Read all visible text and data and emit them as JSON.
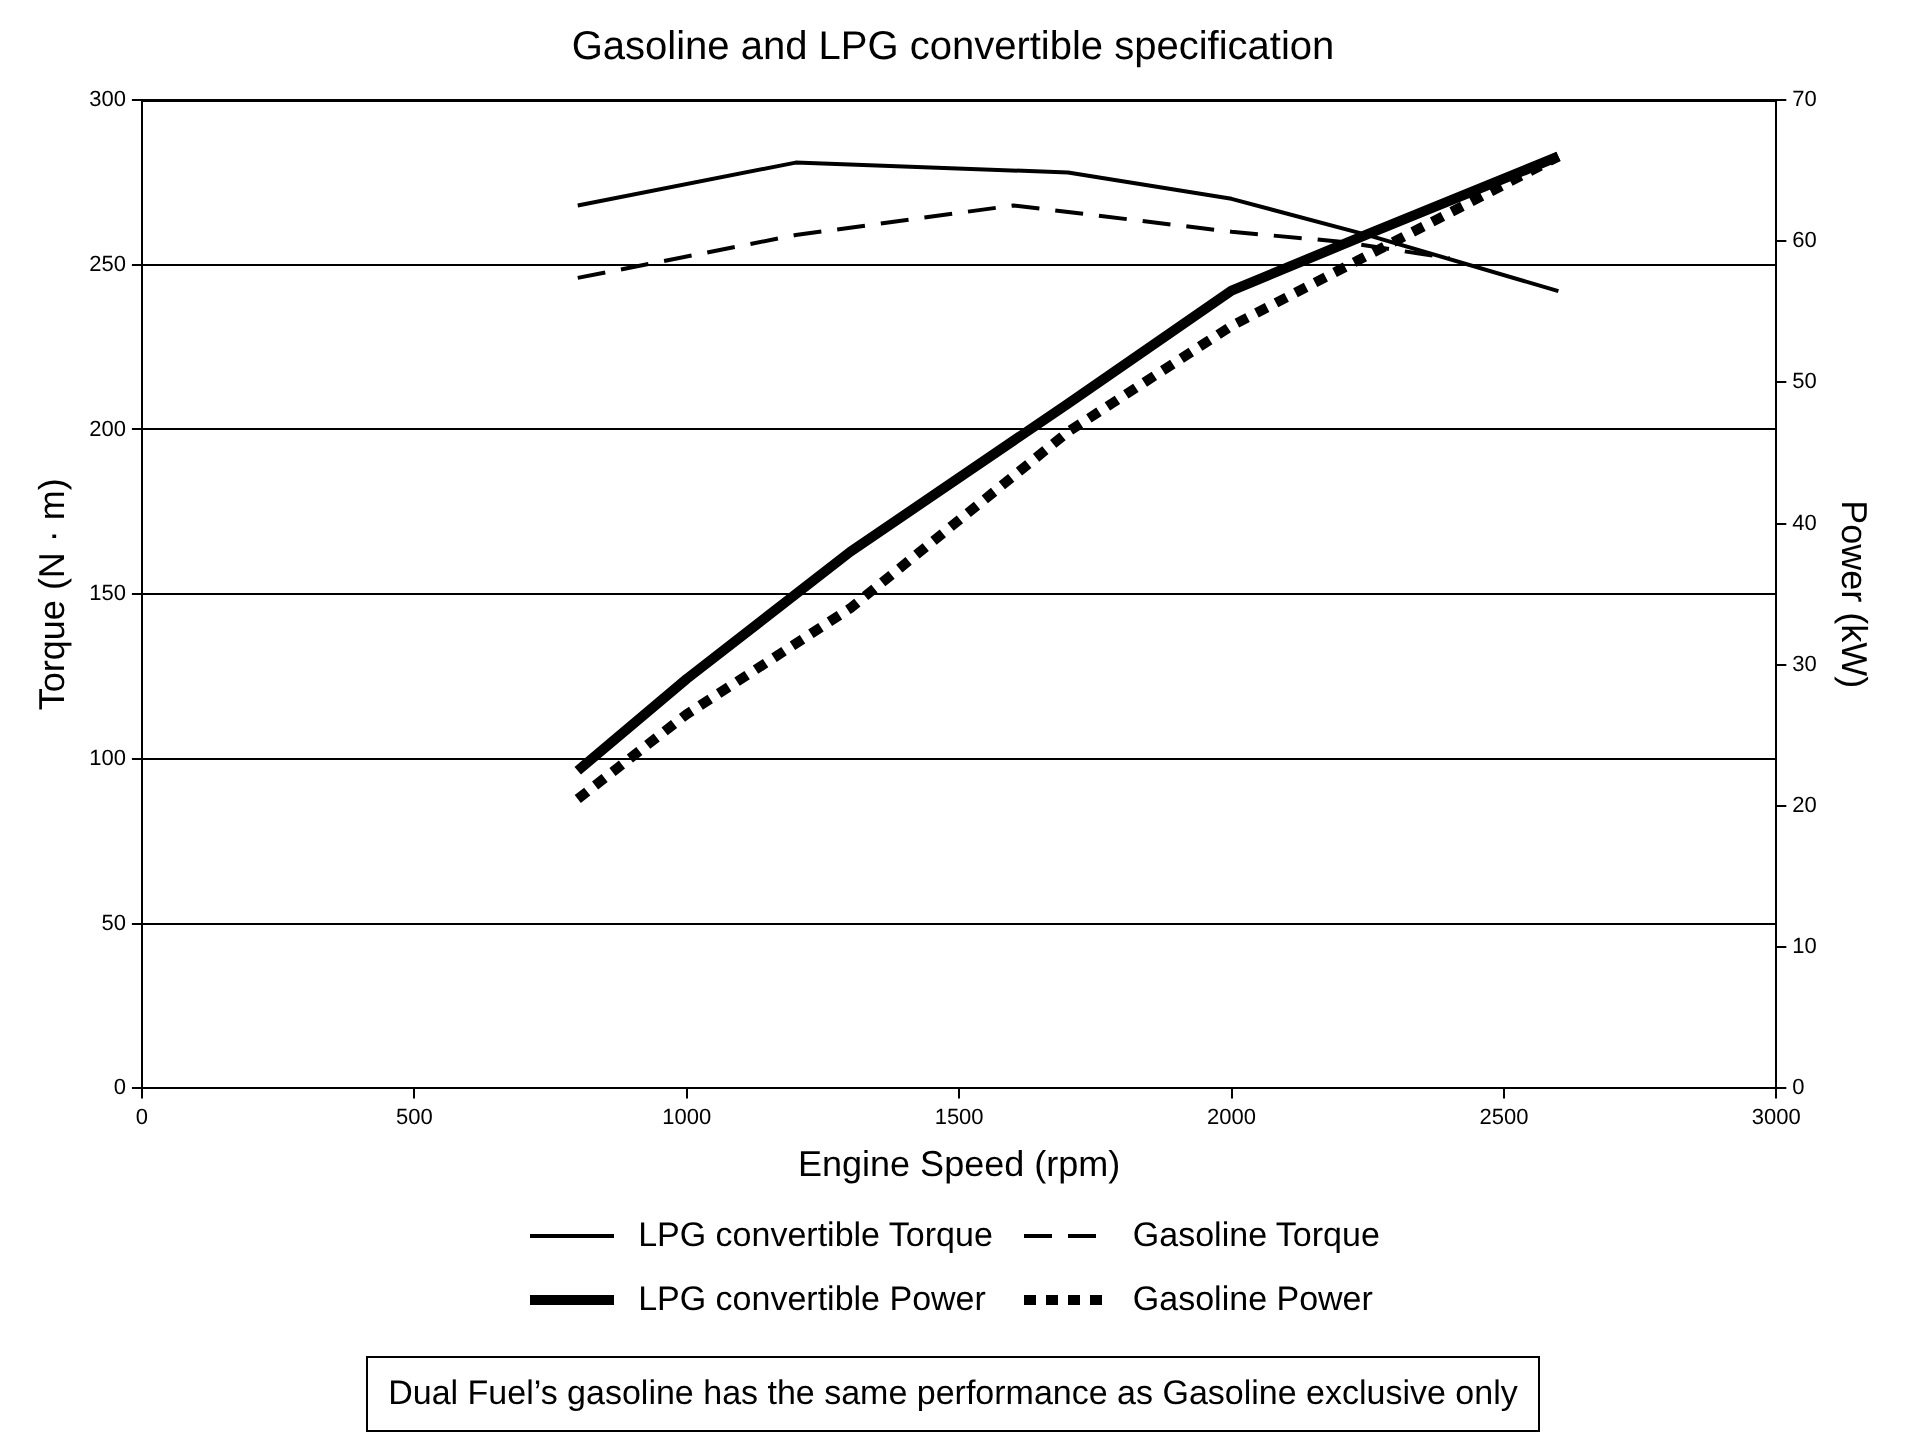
{
  "chart_data": {
    "type": "line",
    "title": "Gasoline and LPG convertible specification",
    "xlabel": "Engine Speed (rpm)",
    "ylabel": "Torque (N · m)",
    "y2label": "Power (kW)",
    "xlim": [
      0,
      3000
    ],
    "xticks": [
      0,
      500,
      1000,
      1500,
      2000,
      2500,
      3000
    ],
    "ylim": [
      0,
      300
    ],
    "yticks": [
      0,
      50,
      100,
      150,
      200,
      250,
      300
    ],
    "y2lim": [
      0,
      70
    ],
    "y2ticks": [
      0,
      10,
      20,
      30,
      40,
      50,
      60,
      70
    ],
    "grid": "y",
    "legend": "bottom",
    "marker": "none",
    "series": [
      {
        "name": "LPG convertible Torque",
        "color": "#000000",
        "line_style": "solid",
        "x": [
          800,
          1200,
          1700,
          2000,
          2250,
          2600
        ],
        "values": [
          268,
          281,
          278,
          270,
          259,
          242
        ]
      },
      {
        "name": "Gasoline Torque",
        "color": "#000000",
        "line_style": "dashed",
        "x": [
          800,
          1200,
          1600,
          2000,
          2200,
          2400
        ],
        "values": [
          246,
          259,
          268,
          260,
          257,
          252
        ]
      },
      {
        "name": "LPG convertible Power",
        "color": "#000000",
        "line_style": "solid",
        "axis": "y2",
        "x": [
          800,
          1000,
          1300,
          1700,
          2000,
          2250,
          2600
        ],
        "values": [
          22.5,
          29,
          38,
          48.5,
          56.5,
          60.5,
          66
        ]
      },
      {
        "name": "Gasoline Power",
        "color": "#000000",
        "line_style": "dotted",
        "axis": "y2",
        "x": [
          800,
          1000,
          1300,
          1700,
          2000,
          2300,
          2600
        ],
        "values": [
          20.5,
          26.5,
          34,
          46.5,
          54,
          60,
          66
        ]
      }
    ],
    "annotations": [
      "Dual Fuel’s gasoline has the same performance as Gasoline exclusive only"
    ]
  }
}
